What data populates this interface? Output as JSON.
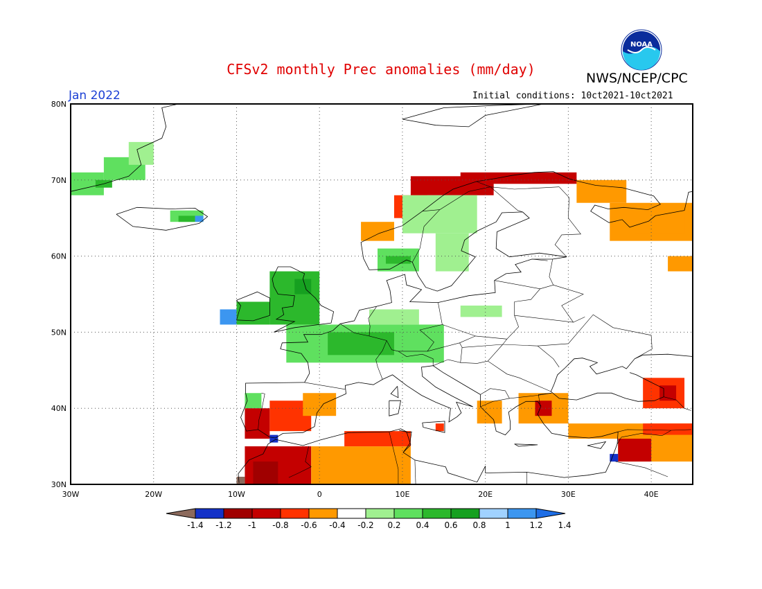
{
  "header": {
    "title": "CFSv2 monthly Prec anomalies (mm/day)",
    "agency": "NWS/NCEP/CPC",
    "month": "Jan 2022",
    "initial_conditions": "Initial conditions: 10ct2021-10ct2021",
    "logo_text": "NOAA"
  },
  "map": {
    "lon_range": [
      -30,
      45
    ],
    "lat_range": [
      30,
      80
    ],
    "lon_ticks": [
      -30,
      -20,
      -10,
      0,
      10,
      20,
      30,
      40
    ],
    "lon_labels": [
      "30W",
      "20W",
      "10W",
      "0",
      "10E",
      "20E",
      "30E",
      "40E"
    ],
    "lat_ticks": [
      30,
      40,
      50,
      60,
      70,
      80
    ],
    "lat_labels": [
      "30N",
      "40N",
      "50N",
      "60N",
      "70N",
      "80N"
    ],
    "grid_dotted": true
  },
  "legend": {
    "ticks": [
      "-1.4",
      "-1.2",
      "-1",
      "-0.8",
      "-0.6",
      "-0.4",
      "-0.2",
      "0.2",
      "0.4",
      "0.6",
      "0.8",
      "1",
      "1.2",
      "1.4"
    ],
    "colors": [
      "#8c6a5c",
      "#1432c8",
      "#a00000",
      "#c40000",
      "#ff3300",
      "#ff9900",
      "#ffffff",
      "#a0f090",
      "#5fe05f",
      "#2cb82c",
      "#16a020",
      "#a0d2ff",
      "#3c96f0",
      "#1e6ee6"
    ]
  },
  "chart_data": {
    "type": "heatmap",
    "units": "mm/day",
    "cells": [
      {
        "lon": [
          -30,
          -26
        ],
        "lat": [
          68,
          71
        ],
        "value": 0.4
      },
      {
        "lon": [
          -26,
          -21
        ],
        "lat": [
          70,
          73
        ],
        "value": 0.4
      },
      {
        "lon": [
          -23,
          -20
        ],
        "lat": [
          72,
          75
        ],
        "value": 0.3
      },
      {
        "lon": [
          -27,
          -25
        ],
        "lat": [
          69,
          70
        ],
        "value": 0.7
      },
      {
        "lon": [
          -18,
          -14
        ],
        "lat": [
          64.5,
          66
        ],
        "value": 0.4
      },
      {
        "lon": [
          -17,
          -15
        ],
        "lat": [
          64.5,
          65.3
        ],
        "value": 0.7
      },
      {
        "lon": [
          -15,
          -14
        ],
        "lat": [
          64.5,
          65.3
        ],
        "value": 1.2
      },
      {
        "lon": [
          11,
          21
        ],
        "lat": [
          68,
          70.5
        ],
        "value": -0.8
      },
      {
        "lon": [
          17,
          31
        ],
        "lat": [
          69.5,
          71
        ],
        "value": -0.7
      },
      {
        "lon": [
          9,
          13
        ],
        "lat": [
          65,
          68
        ],
        "value": -0.6
      },
      {
        "lon": [
          5,
          9
        ],
        "lat": [
          62,
          64.5
        ],
        "value": -0.4
      },
      {
        "lon": [
          10,
          19
        ],
        "lat": [
          63,
          68
        ],
        "value": 0.3
      },
      {
        "lon": [
          14,
          18
        ],
        "lat": [
          58,
          63
        ],
        "value": 0.3
      },
      {
        "lon": [
          7,
          12
        ],
        "lat": [
          58,
          61
        ],
        "value": 0.4
      },
      {
        "lon": [
          8,
          11
        ],
        "lat": [
          59,
          60
        ],
        "value": 0.6
      },
      {
        "lon": [
          -10,
          -6
        ],
        "lat": [
          51,
          54
        ],
        "value": 0.7
      },
      {
        "lon": [
          -12,
          -10
        ],
        "lat": [
          51,
          53
        ],
        "value": 1.2
      },
      {
        "lon": [
          -6,
          0
        ],
        "lat": [
          51,
          58
        ],
        "value": 0.6
      },
      {
        "lon": [
          -3,
          -1
        ],
        "lat": [
          55,
          57
        ],
        "value": 0.8
      },
      {
        "lon": [
          -4,
          15
        ],
        "lat": [
          46,
          51
        ],
        "value": 0.5
      },
      {
        "lon": [
          1,
          9
        ],
        "lat": [
          47,
          50
        ],
        "value": 0.7
      },
      {
        "lon": [
          6,
          12
        ],
        "lat": [
          51,
          53
        ],
        "value": 0.3
      },
      {
        "lon": [
          17,
          22
        ],
        "lat": [
          52,
          53.5
        ],
        "value": 0.3
      },
      {
        "lon": [
          -9,
          -7
        ],
        "lat": [
          40,
          42
        ],
        "value": 0.5
      },
      {
        "lon": [
          -9,
          -6
        ],
        "lat": [
          36,
          40
        ],
        "value": -0.8
      },
      {
        "lon": [
          -6,
          -1
        ],
        "lat": [
          37,
          41
        ],
        "value": -0.5
      },
      {
        "lon": [
          -2,
          2
        ],
        "lat": [
          39,
          42
        ],
        "value": -0.3
      },
      {
        "lon": [
          -9,
          -1
        ],
        "lat": [
          30,
          35
        ],
        "value": -0.8
      },
      {
        "lon": [
          -8,
          -5
        ],
        "lat": [
          30,
          33
        ],
        "value": -1
      },
      {
        "lon": [
          -6,
          -5
        ],
        "lat": [
          35.5,
          36.5
        ],
        "value": -1.2
      },
      {
        "lon": [
          -10,
          -9
        ],
        "lat": [
          30,
          31
        ],
        "value": -1.4
      },
      {
        "lon": [
          -1,
          11
        ],
        "lat": [
          30,
          35
        ],
        "value": -0.4
      },
      {
        "lon": [
          3,
          11
        ],
        "lat": [
          35,
          37
        ],
        "value": -0.6
      },
      {
        "lon": [
          14,
          15
        ],
        "lat": [
          37,
          38
        ],
        "value": -0.6
      },
      {
        "lon": [
          24,
          30
        ],
        "lat": [
          38,
          42
        ],
        "value": -0.4
      },
      {
        "lon": [
          26,
          28
        ],
        "lat": [
          39,
          41
        ],
        "value": -0.7
      },
      {
        "lon": [
          19,
          22
        ],
        "lat": [
          38,
          41
        ],
        "value": -0.3
      },
      {
        "lon": [
          30,
          45
        ],
        "lat": [
          36,
          38
        ],
        "value": -0.4
      },
      {
        "lon": [
          39,
          45
        ],
        "lat": [
          36.5,
          38
        ],
        "value": -0.6
      },
      {
        "lon": [
          36,
          45
        ],
        "lat": [
          33,
          36.5
        ],
        "value": -0.4
      },
      {
        "lon": [
          36,
          40
        ],
        "lat": [
          33,
          36
        ],
        "value": -0.7
      },
      {
        "lon": [
          35,
          36
        ],
        "lat": [
          33,
          34
        ],
        "value": -1.2
      },
      {
        "lon": [
          39,
          44
        ],
        "lat": [
          40,
          44
        ],
        "value": -0.6
      },
      {
        "lon": [
          41,
          43
        ],
        "lat": [
          41,
          43
        ],
        "value": -0.8
      },
      {
        "lon": [
          31,
          37
        ],
        "lat": [
          67,
          70
        ],
        "value": -0.3
      },
      {
        "lon": [
          35,
          45
        ],
        "lat": [
          62,
          67
        ],
        "value": -0.3
      },
      {
        "lon": [
          38,
          44
        ],
        "lat": [
          63,
          66
        ],
        "value": -0.3
      },
      {
        "lon": [
          42,
          45
        ],
        "lat": [
          58,
          60
        ],
        "value": -0.3
      }
    ]
  }
}
